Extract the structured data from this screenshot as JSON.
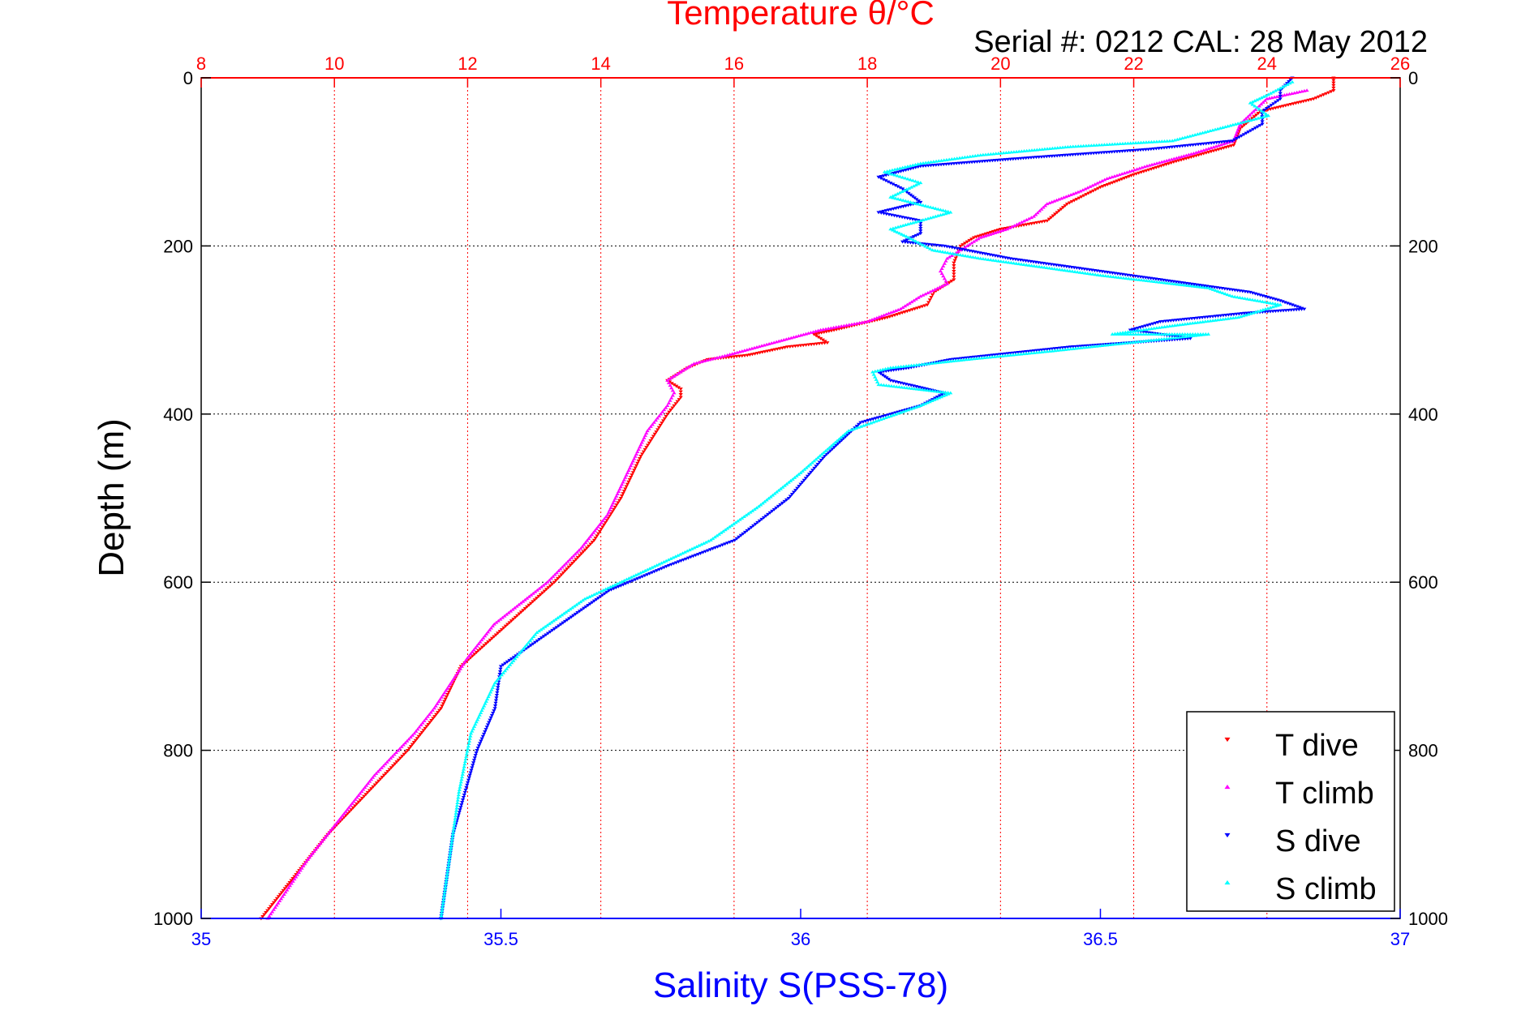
{
  "chart_data": {
    "type": "scatter",
    "title_top": "Temperature θ/°C",
    "subtitle": "Serial #: 0212  CAL: 28 May 2012",
    "xlabel_bottom": "Salinity S(PSS-78)",
    "ylabel": "Depth (m)",
    "colors": {
      "t_dive": "#ff0000",
      "t_climb": "#ff00ff",
      "s_dive": "#0000ff",
      "s_climb": "#00ffff",
      "top_axis": "#ff0000",
      "bottom_axis": "#0000ff",
      "grid": "#ff0000"
    },
    "y_axis": {
      "min": 0,
      "max": 1000,
      "reversed": true,
      "ticks": [
        0,
        200,
        400,
        600,
        800,
        1000
      ],
      "tick_labels": [
        "0",
        "200",
        "400",
        "600",
        "800",
        "1000"
      ]
    },
    "x_top_axis": {
      "min": 8,
      "max": 26,
      "ticks": [
        8,
        10,
        12,
        14,
        16,
        18,
        20,
        22,
        24,
        26
      ],
      "tick_labels": [
        "8",
        "10",
        "12",
        "14",
        "16",
        "18",
        "20",
        "22",
        "24",
        "26"
      ]
    },
    "x_bottom_axis": {
      "min": 35,
      "max": 37,
      "ticks": [
        35,
        35.5,
        36,
        36.5,
        37
      ],
      "tick_labels": [
        "35",
        "35.5",
        "36",
        "36.5",
        "37"
      ]
    },
    "grid": true,
    "legend": {
      "position": "bottom-right",
      "entries": [
        "T dive",
        "T climb",
        "S dive",
        "S climb"
      ]
    },
    "series": [
      {
        "name": "T dive",
        "axis": "top",
        "marker": "triangle-down",
        "points": [
          [
            25.0,
            0
          ],
          [
            25.0,
            15
          ],
          [
            24.7,
            25
          ],
          [
            23.9,
            40
          ],
          [
            23.6,
            60
          ],
          [
            23.5,
            80
          ],
          [
            22.6,
            100
          ],
          [
            22.0,
            115
          ],
          [
            21.5,
            130
          ],
          [
            21.0,
            150
          ],
          [
            20.7,
            170
          ],
          [
            20.0,
            180
          ],
          [
            19.6,
            190
          ],
          [
            19.4,
            200
          ],
          [
            19.3,
            220
          ],
          [
            19.3,
            240
          ],
          [
            19.0,
            255
          ],
          [
            18.9,
            270
          ],
          [
            18.3,
            285
          ],
          [
            17.5,
            300
          ],
          [
            17.2,
            305
          ],
          [
            17.4,
            315
          ],
          [
            16.8,
            320
          ],
          [
            16.2,
            330
          ],
          [
            15.6,
            335
          ],
          [
            15.3,
            345
          ],
          [
            15.0,
            360
          ],
          [
            15.2,
            370
          ],
          [
            15.2,
            380
          ],
          [
            15.0,
            400
          ],
          [
            14.6,
            450
          ],
          [
            14.3,
            500
          ],
          [
            13.9,
            550
          ],
          [
            13.3,
            600
          ],
          [
            12.6,
            650
          ],
          [
            11.9,
            700
          ],
          [
            11.6,
            750
          ],
          [
            11.1,
            800
          ],
          [
            10.5,
            850
          ],
          [
            9.9,
            900
          ],
          [
            9.4,
            950
          ],
          [
            8.9,
            1000
          ]
        ]
      },
      {
        "name": "T climb",
        "axis": "top",
        "marker": "triangle-up",
        "points": [
          [
            24.6,
            15
          ],
          [
            24.0,
            25
          ],
          [
            23.8,
            40
          ],
          [
            23.6,
            55
          ],
          [
            23.5,
            75
          ],
          [
            22.9,
            90
          ],
          [
            22.2,
            105
          ],
          [
            21.6,
            120
          ],
          [
            21.2,
            135
          ],
          [
            20.7,
            150
          ],
          [
            20.5,
            165
          ],
          [
            20.1,
            180
          ],
          [
            19.7,
            190
          ],
          [
            19.5,
            200
          ],
          [
            19.2,
            215
          ],
          [
            19.1,
            230
          ],
          [
            19.2,
            245
          ],
          [
            18.8,
            260
          ],
          [
            18.5,
            275
          ],
          [
            18.0,
            290
          ],
          [
            17.3,
            300
          ],
          [
            16.6,
            315
          ],
          [
            15.9,
            330
          ],
          [
            15.4,
            340
          ],
          [
            15.0,
            360
          ],
          [
            15.1,
            375
          ],
          [
            15.0,
            390
          ],
          [
            14.7,
            420
          ],
          [
            14.4,
            470
          ],
          [
            14.1,
            520
          ],
          [
            13.7,
            560
          ],
          [
            13.2,
            600
          ],
          [
            12.4,
            650
          ],
          [
            12.0,
            690
          ],
          [
            11.5,
            750
          ],
          [
            11.2,
            780
          ],
          [
            10.6,
            830
          ],
          [
            10.1,
            880
          ],
          [
            9.6,
            930
          ],
          [
            9.0,
            1000
          ]
        ]
      },
      {
        "name": "S dive",
        "axis": "bottom",
        "marker": "triangle-down",
        "points": [
          [
            36.82,
            0
          ],
          [
            36.8,
            15
          ],
          [
            36.8,
            25
          ],
          [
            36.77,
            40
          ],
          [
            36.77,
            55
          ],
          [
            36.72,
            75
          ],
          [
            36.58,
            85
          ],
          [
            36.38,
            95
          ],
          [
            36.2,
            105
          ],
          [
            36.13,
            118
          ],
          [
            36.17,
            132
          ],
          [
            36.2,
            148
          ],
          [
            36.13,
            160
          ],
          [
            36.2,
            170
          ],
          [
            36.2,
            185
          ],
          [
            36.17,
            195
          ],
          [
            36.24,
            200
          ],
          [
            36.35,
            215
          ],
          [
            36.55,
            235
          ],
          [
            36.75,
            255
          ],
          [
            36.8,
            265
          ],
          [
            36.84,
            275
          ],
          [
            36.74,
            280
          ],
          [
            36.6,
            290
          ],
          [
            36.55,
            300
          ],
          [
            36.65,
            310
          ],
          [
            36.45,
            320
          ],
          [
            36.25,
            335
          ],
          [
            36.18,
            345
          ],
          [
            36.13,
            350
          ],
          [
            36.15,
            360
          ],
          [
            36.24,
            375
          ],
          [
            36.2,
            390
          ],
          [
            36.1,
            410
          ],
          [
            36.04,
            450
          ],
          [
            35.98,
            500
          ],
          [
            35.89,
            550
          ],
          [
            35.78,
            580
          ],
          [
            35.68,
            610
          ],
          [
            35.6,
            650
          ],
          [
            35.5,
            700
          ],
          [
            35.49,
            750
          ],
          [
            35.46,
            800
          ],
          [
            35.44,
            850
          ],
          [
            35.42,
            900
          ],
          [
            35.41,
            950
          ],
          [
            35.4,
            1000
          ]
        ]
      },
      {
        "name": "S climb",
        "axis": "bottom",
        "marker": "triangle-up",
        "points": [
          [
            36.82,
            5
          ],
          [
            36.78,
            20
          ],
          [
            36.75,
            30
          ],
          [
            36.78,
            45
          ],
          [
            36.7,
            60
          ],
          [
            36.62,
            75
          ],
          [
            36.45,
            82
          ],
          [
            36.3,
            92
          ],
          [
            36.2,
            102
          ],
          [
            36.14,
            112
          ],
          [
            36.2,
            125
          ],
          [
            36.15,
            142
          ],
          [
            36.25,
            160
          ],
          [
            36.15,
            180
          ],
          [
            36.18,
            190
          ],
          [
            36.22,
            205
          ],
          [
            36.3,
            215
          ],
          [
            36.5,
            235
          ],
          [
            36.68,
            250
          ],
          [
            36.72,
            260
          ],
          [
            36.8,
            270
          ],
          [
            36.73,
            285
          ],
          [
            36.62,
            295
          ],
          [
            36.52,
            305
          ],
          [
            36.68,
            305
          ],
          [
            36.42,
            325
          ],
          [
            36.28,
            335
          ],
          [
            36.15,
            345
          ],
          [
            36.12,
            350
          ],
          [
            36.13,
            365
          ],
          [
            36.25,
            375
          ],
          [
            36.2,
            390
          ],
          [
            36.08,
            420
          ],
          [
            36.0,
            470
          ],
          [
            35.93,
            510
          ],
          [
            35.85,
            550
          ],
          [
            35.76,
            580
          ],
          [
            35.64,
            620
          ],
          [
            35.56,
            660
          ],
          [
            35.49,
            720
          ],
          [
            35.45,
            780
          ],
          [
            35.43,
            850
          ],
          [
            35.42,
            900
          ],
          [
            35.41,
            950
          ],
          [
            35.4,
            1000
          ]
        ]
      }
    ]
  }
}
